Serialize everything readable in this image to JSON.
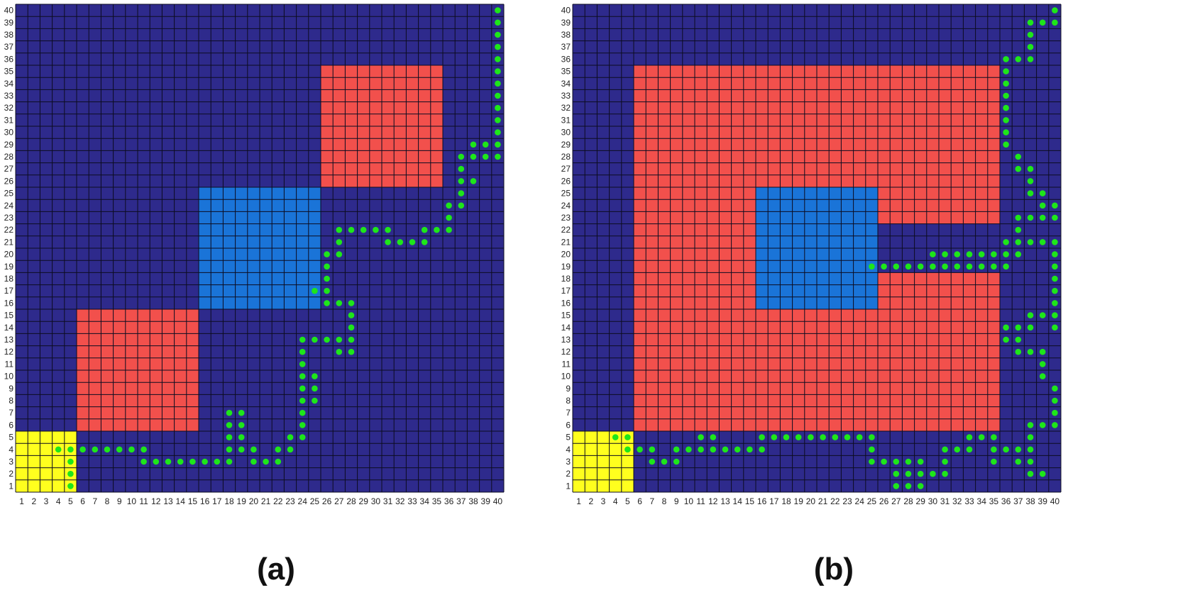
{
  "colors": {
    "background_cell": "#2e2a8c",
    "grid_line": "#0c0c20",
    "obstacle": "#f2504c",
    "cloud": "#1a74d8",
    "start": "#ffff1e",
    "path_marker": "#1ee61a"
  },
  "grid": {
    "cols": 40,
    "rows": 40
  },
  "axis_ticks": [
    "1",
    "2",
    "3",
    "4",
    "5",
    "6",
    "7",
    "8",
    "9",
    "10",
    "11",
    "12",
    "13",
    "14",
    "15",
    "16",
    "17",
    "18",
    "19",
    "20",
    "21",
    "22",
    "23",
    "24",
    "25",
    "26",
    "27",
    "28",
    "29",
    "30",
    "31",
    "32",
    "33",
    "34",
    "35",
    "36",
    "37",
    "38",
    "39",
    "40"
  ],
  "panels": [
    {
      "caption": "(a)",
      "regions": [
        {
          "kind": "start",
          "x": [
            1,
            5
          ],
          "y": [
            1,
            5
          ]
        },
        {
          "kind": "obstacle",
          "x": [
            6,
            15
          ],
          "y": [
            6,
            15
          ]
        },
        {
          "kind": "cloud",
          "x": [
            16,
            25
          ],
          "y": [
            16,
            25
          ]
        },
        {
          "kind": "obstacle",
          "x": [
            26,
            35
          ],
          "y": [
            26,
            35
          ]
        }
      ],
      "path": [
        [
          4,
          4
        ],
        [
          5,
          4
        ],
        [
          5,
          3
        ],
        [
          5,
          2
        ],
        [
          5,
          1
        ],
        [
          6,
          4
        ],
        [
          7,
          4
        ],
        [
          8,
          4
        ],
        [
          9,
          4
        ],
        [
          10,
          4
        ],
        [
          11,
          4
        ],
        [
          11,
          3
        ],
        [
          12,
          3
        ],
        [
          13,
          3
        ],
        [
          14,
          3
        ],
        [
          15,
          3
        ],
        [
          16,
          3
        ],
        [
          17,
          3
        ],
        [
          18,
          3
        ],
        [
          18,
          4
        ],
        [
          18,
          5
        ],
        [
          18,
          6
        ],
        [
          18,
          7
        ],
        [
          19,
          7
        ],
        [
          19,
          6
        ],
        [
          19,
          5
        ],
        [
          19,
          4
        ],
        [
          20,
          4
        ],
        [
          20,
          3
        ],
        [
          21,
          3
        ],
        [
          22,
          3
        ],
        [
          22,
          4
        ],
        [
          23,
          4
        ],
        [
          23,
          5
        ],
        [
          24,
          5
        ],
        [
          24,
          6
        ],
        [
          24,
          7
        ],
        [
          24,
          8
        ],
        [
          24,
          9
        ],
        [
          24,
          10
        ],
        [
          24,
          11
        ],
        [
          24,
          12
        ],
        [
          24,
          13
        ],
        [
          25,
          13
        ],
        [
          25,
          10
        ],
        [
          25,
          9
        ],
        [
          25,
          8
        ],
        [
          26,
          13
        ],
        [
          27,
          13
        ],
        [
          27,
          12
        ],
        [
          28,
          12
        ],
        [
          28,
          13
        ],
        [
          28,
          14
        ],
        [
          28,
          15
        ],
        [
          28,
          16
        ],
        [
          27,
          16
        ],
        [
          26,
          16
        ],
        [
          26,
          17
        ],
        [
          26,
          18
        ],
        [
          26,
          19
        ],
        [
          26,
          20
        ],
        [
          25,
          17
        ],
        [
          27,
          20
        ],
        [
          27,
          21
        ],
        [
          27,
          22
        ],
        [
          28,
          22
        ],
        [
          29,
          22
        ],
        [
          30,
          22
        ],
        [
          31,
          22
        ],
        [
          31,
          21
        ],
        [
          32,
          21
        ],
        [
          33,
          21
        ],
        [
          34,
          21
        ],
        [
          34,
          22
        ],
        [
          35,
          22
        ],
        [
          36,
          22
        ],
        [
          36,
          23
        ],
        [
          36,
          24
        ],
        [
          37,
          24
        ],
        [
          37,
          25
        ],
        [
          37,
          26
        ],
        [
          37,
          27
        ],
        [
          37,
          28
        ],
        [
          38,
          28
        ],
        [
          38,
          26
        ],
        [
          38,
          29
        ],
        [
          39,
          29
        ],
        [
          39,
          28
        ],
        [
          40,
          28
        ],
        [
          40,
          29
        ],
        [
          40,
          30
        ],
        [
          40,
          31
        ],
        [
          40,
          32
        ],
        [
          40,
          33
        ],
        [
          40,
          34
        ],
        [
          40,
          35
        ],
        [
          40,
          36
        ],
        [
          40,
          37
        ],
        [
          40,
          38
        ],
        [
          40,
          39
        ],
        [
          40,
          40
        ]
      ]
    },
    {
      "caption": "(b)",
      "regions": [
        {
          "kind": "start",
          "x": [
            1,
            5
          ],
          "y": [
            1,
            5
          ]
        },
        {
          "kind": "obstacle",
          "x": [
            6,
            35
          ],
          "y": [
            6,
            35
          ]
        },
        {
          "kind": "gap",
          "x": [
            26,
            35
          ],
          "y": [
            19,
            22
          ]
        },
        {
          "kind": "cloud",
          "x": [
            16,
            25
          ],
          "y": [
            16,
            25
          ]
        }
      ],
      "path": [
        [
          4,
          5
        ],
        [
          5,
          5
        ],
        [
          5,
          4
        ],
        [
          6,
          4
        ],
        [
          7,
          4
        ],
        [
          7,
          3
        ],
        [
          8,
          3
        ],
        [
          9,
          3
        ],
        [
          9,
          4
        ],
        [
          10,
          4
        ],
        [
          11,
          4
        ],
        [
          11,
          5
        ],
        [
          12,
          5
        ],
        [
          12,
          4
        ],
        [
          13,
          4
        ],
        [
          14,
          4
        ],
        [
          15,
          4
        ],
        [
          16,
          4
        ],
        [
          16,
          5
        ],
        [
          17,
          5
        ],
        [
          18,
          5
        ],
        [
          19,
          5
        ],
        [
          20,
          5
        ],
        [
          21,
          5
        ],
        [
          22,
          5
        ],
        [
          23,
          5
        ],
        [
          24,
          5
        ],
        [
          25,
          5
        ],
        [
          25,
          4
        ],
        [
          25,
          3
        ],
        [
          26,
          3
        ],
        [
          27,
          3
        ],
        [
          27,
          2
        ],
        [
          27,
          1
        ],
        [
          28,
          1
        ],
        [
          28,
          2
        ],
        [
          28,
          3
        ],
        [
          29,
          3
        ],
        [
          29,
          2
        ],
        [
          29,
          1
        ],
        [
          30,
          2
        ],
        [
          31,
          2
        ],
        [
          31,
          3
        ],
        [
          31,
          4
        ],
        [
          32,
          4
        ],
        [
          33,
          4
        ],
        [
          33,
          5
        ],
        [
          34,
          5
        ],
        [
          35,
          5
        ],
        [
          35,
          4
        ],
        [
          35,
          3
        ],
        [
          36,
          4
        ],
        [
          37,
          4
        ],
        [
          37,
          3
        ],
        [
          38,
          3
        ],
        [
          38,
          4
        ],
        [
          38,
          5
        ],
        [
          38,
          2
        ],
        [
          39,
          2
        ],
        [
          38,
          6
        ],
        [
          39,
          6
        ],
        [
          40,
          6
        ],
        [
          40,
          7
        ],
        [
          40,
          8
        ],
        [
          40,
          9
        ],
        [
          39,
          10
        ],
        [
          39,
          11
        ],
        [
          39,
          12
        ],
        [
          38,
          12
        ],
        [
          37,
          12
        ],
        [
          37,
          13
        ],
        [
          36,
          13
        ],
        [
          36,
          14
        ],
        [
          37,
          14
        ],
        [
          38,
          14
        ],
        [
          38,
          15
        ],
        [
          39,
          15
        ],
        [
          40,
          15
        ],
        [
          40,
          14
        ],
        [
          40,
          16
        ],
        [
          40,
          17
        ],
        [
          40,
          18
        ],
        [
          40,
          19
        ],
        [
          40,
          20
        ],
        [
          40,
          21
        ],
        [
          39,
          21
        ],
        [
          38,
          21
        ],
        [
          37,
          21
        ],
        [
          37,
          22
        ],
        [
          37,
          23
        ],
        [
          38,
          23
        ],
        [
          39,
          23
        ],
        [
          40,
          23
        ],
        [
          40,
          24
        ],
        [
          39,
          24
        ],
        [
          39,
          25
        ],
        [
          38,
          25
        ],
        [
          38,
          26
        ],
        [
          38,
          27
        ],
        [
          37,
          27
        ],
        [
          37,
          28
        ],
        [
          36,
          29
        ],
        [
          36,
          30
        ],
        [
          36,
          31
        ],
        [
          36,
          32
        ],
        [
          36,
          33
        ],
        [
          36,
          34
        ],
        [
          36,
          35
        ],
        [
          36,
          36
        ],
        [
          37,
          36
        ],
        [
          38,
          36
        ],
        [
          38,
          37
        ],
        [
          38,
          38
        ],
        [
          38,
          39
        ],
        [
          39,
          39
        ],
        [
          40,
          39
        ],
        [
          40,
          40
        ],
        [
          36,
          21
        ],
        [
          36,
          20
        ],
        [
          37,
          20
        ],
        [
          36,
          19
        ],
        [
          35,
          19
        ],
        [
          34,
          19
        ],
        [
          33,
          19
        ],
        [
          32,
          19
        ],
        [
          31,
          19
        ],
        [
          30,
          19
        ],
        [
          29,
          19
        ],
        [
          28,
          19
        ],
        [
          27,
          19
        ],
        [
          26,
          19
        ],
        [
          25,
          19
        ],
        [
          30,
          20
        ],
        [
          31,
          20
        ],
        [
          32,
          20
        ],
        [
          33,
          20
        ],
        [
          34,
          20
        ],
        [
          35,
          20
        ]
      ]
    }
  ]
}
